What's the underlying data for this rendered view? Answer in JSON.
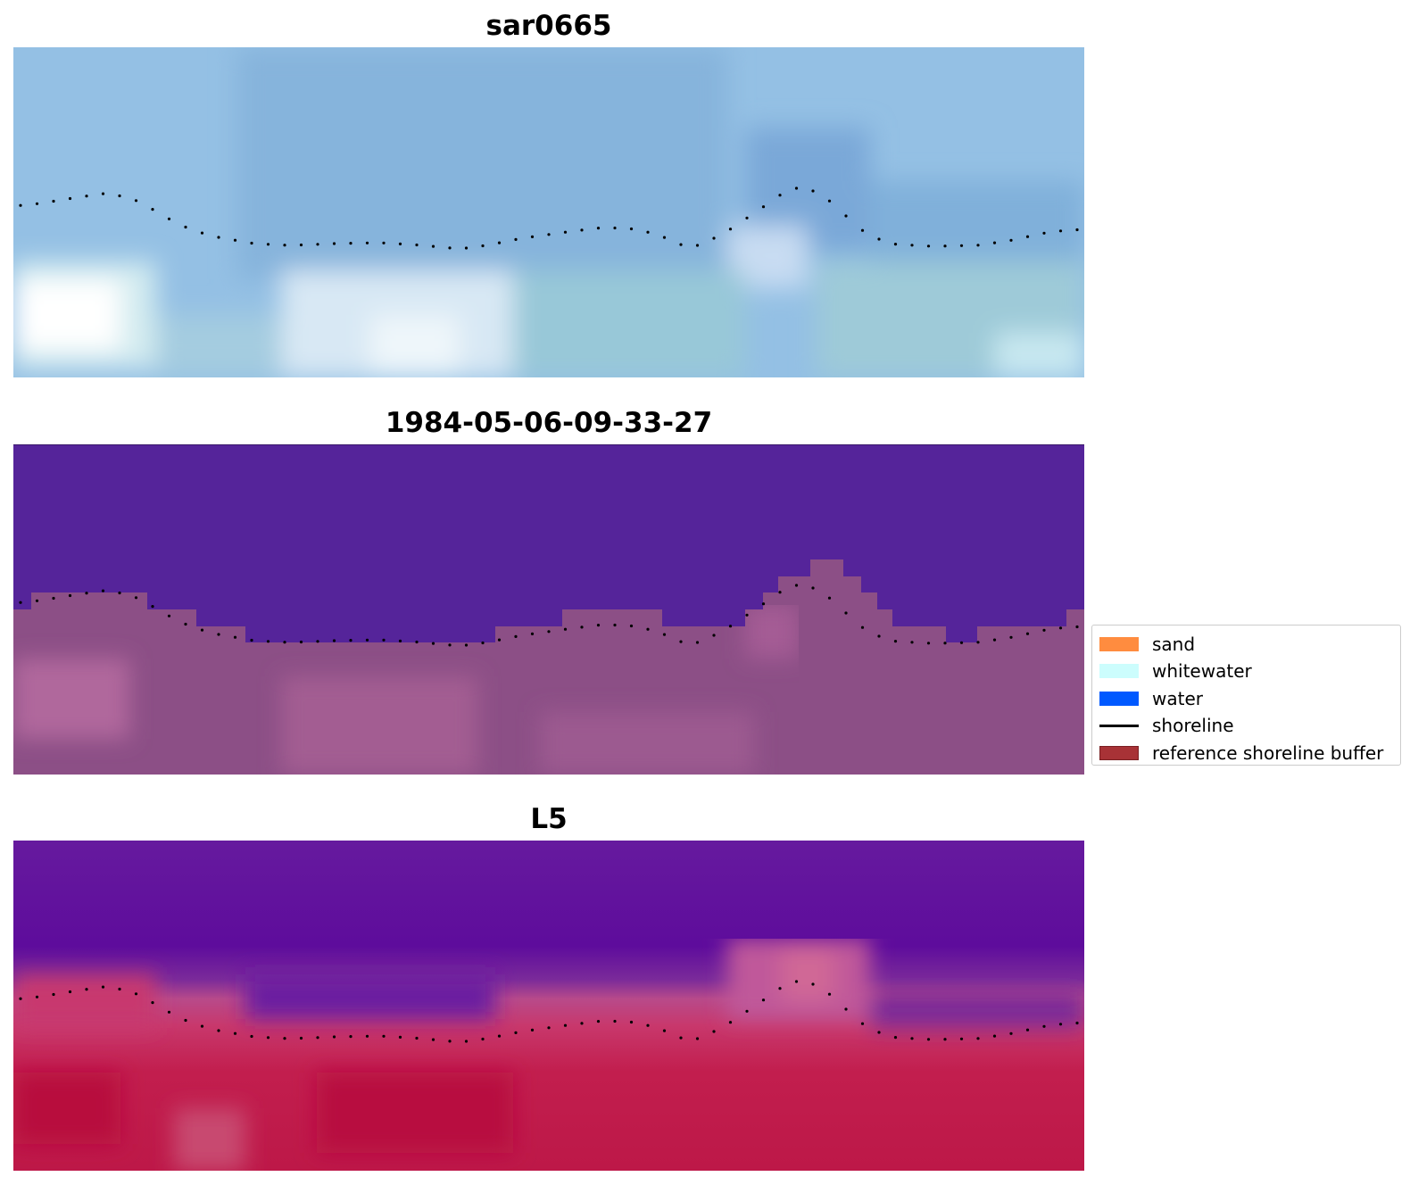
{
  "panels": [
    {
      "title": "sar0665",
      "kind": "sar"
    },
    {
      "title": "1984-05-06-09-33-27",
      "kind": "classification"
    },
    {
      "title": "L5",
      "kind": "index"
    }
  ],
  "legend": {
    "items": [
      {
        "label": "sand",
        "type": "patch",
        "color": "#ff8c3f"
      },
      {
        "label": "whitewater",
        "type": "patch",
        "color": "#ccfdfd"
      },
      {
        "label": "water",
        "type": "patch",
        "color": "#0059ff"
      },
      {
        "label": "shoreline",
        "type": "line",
        "color": "#000000"
      },
      {
        "label": "reference shoreline buffer",
        "type": "patch",
        "color": "#a83236",
        "edge": "#7a1f22"
      }
    ]
  },
  "colors": {
    "water_class": "#55249a",
    "sand_overlay": "#8c4f86",
    "sar_base": "#8ab8de",
    "index_high": "#5a0a9c",
    "index_low": "#c0164a"
  }
}
